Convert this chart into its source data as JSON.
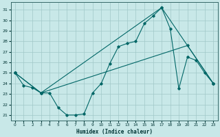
{
  "xlabel": "Humidex (Indice chaleur)",
  "xlim": [
    -0.5,
    23.5
  ],
  "ylim": [
    20.5,
    31.7
  ],
  "yticks": [
    21,
    22,
    23,
    24,
    25,
    26,
    27,
    28,
    29,
    30,
    31
  ],
  "xticks": [
    0,
    1,
    2,
    3,
    4,
    5,
    6,
    7,
    8,
    9,
    10,
    11,
    12,
    13,
    14,
    15,
    16,
    17,
    18,
    19,
    20,
    21,
    22,
    23
  ],
  "background_color": "#c8e8e8",
  "grid_color": "#a0c8c8",
  "line_color": "#006666",
  "line1_x": [
    0,
    1,
    2,
    3,
    4,
    5,
    6,
    7,
    8,
    9,
    10,
    11,
    12,
    13,
    14,
    15,
    16,
    17,
    18,
    19,
    20,
    21,
    22,
    23
  ],
  "line1_y": [
    25.0,
    23.8,
    23.6,
    23.1,
    23.1,
    21.7,
    21.0,
    21.0,
    21.1,
    23.1,
    24.0,
    25.9,
    27.5,
    27.8,
    28.0,
    29.7,
    30.4,
    31.2,
    29.2,
    23.5,
    26.5,
    26.2,
    25.0,
    24.0
  ],
  "line2_x": [
    0,
    3,
    17,
    23
  ],
  "line2_y": [
    25.0,
    23.1,
    31.2,
    24.0
  ],
  "line3_x": [
    0,
    3,
    20,
    23
  ],
  "line3_y": [
    25.0,
    23.1,
    27.6,
    24.0
  ]
}
